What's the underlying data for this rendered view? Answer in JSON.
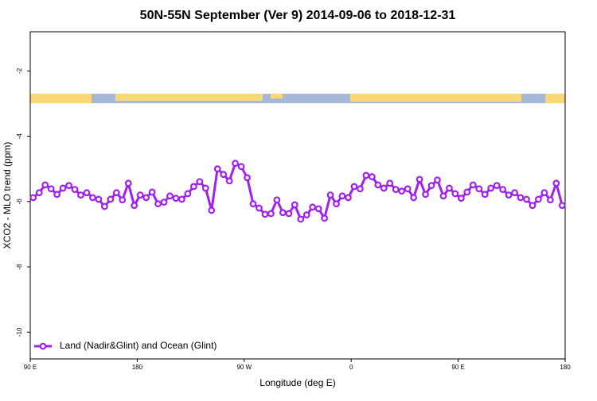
{
  "chart_data": {
    "type": "line",
    "title": "50N-55N September (Ver 9)   2014-09-06 to 2018-12-31",
    "xlabel": "Longitude (deg E)",
    "ylabel": "XCO2 - MLO trend (ppm)",
    "legend": "lower left",
    "xlim": [
      90,
      540
    ],
    "ylim": [
      -10.82,
      -0.8
    ],
    "xticks": [
      {
        "value": 90,
        "label": "90 E"
      },
      180,
      {
        "value": 270,
        "label": "90 W"
      },
      0,
      {
        "value": 450,
        "label": "90 E"
      },
      {
        "value": 540,
        "label": "180"
      }
    ],
    "yticks": [
      -2,
      -4,
      -6,
      -8,
      -10
    ],
    "x": [
      92.5,
      97.5,
      102.5,
      107.5,
      112.5,
      117.5,
      122.5,
      127.5,
      132.5,
      137.5,
      142.5,
      147.5,
      152.5,
      157.5,
      162.5,
      167.5,
      172.5,
      177.5,
      182.5,
      187.5,
      192.5,
      197.5,
      202.5,
      207.5,
      212.5,
      217.5,
      222.5,
      227.5,
      232.5,
      237.5,
      242.5,
      247.5,
      252.5,
      257.5,
      262.5,
      267.5,
      272.5,
      277.5,
      282.5,
      287.5,
      292.5,
      297.5,
      302.5,
      307.5,
      312.5,
      317.5,
      322.5,
      327.5,
      332.5,
      337.5,
      342.5,
      347.5,
      352.5,
      357.5,
      362.5,
      367.5,
      372.5,
      377.5,
      382.5,
      387.5,
      392.5,
      397.5,
      402.5,
      407.5,
      412.5,
      417.5,
      422.5,
      427.5,
      432.5,
      437.5,
      442.5,
      447.5,
      452.5,
      457.5,
      462.5,
      467.5,
      472.5,
      477.5,
      482.5,
      487.5,
      492.5,
      497.5,
      502.5,
      507.5,
      512.5,
      517.5,
      522.5,
      527.5,
      532.5,
      537.5
    ],
    "series": [
      {
        "name": "Land (Nadir&Glint) and Ocean (Glint)",
        "color": "#a020f0",
        "values": [
          -5.88,
          -5.73,
          -5.49,
          -5.61,
          -5.78,
          -5.59,
          -5.51,
          -5.63,
          -5.8,
          -5.73,
          -5.88,
          -5.93,
          -6.15,
          -5.93,
          -5.73,
          -5.95,
          -5.44,
          -6.12,
          -5.8,
          -5.88,
          -5.71,
          -6.07,
          -6.02,
          -5.83,
          -5.9,
          -5.93,
          -5.76,
          -5.54,
          -5.39,
          -5.59,
          -6.27,
          -5.0,
          -5.17,
          -5.37,
          -4.83,
          -4.93,
          -5.27,
          -6.07,
          -6.2,
          -6.39,
          -6.37,
          -5.95,
          -6.34,
          -6.37,
          -6.1,
          -6.54,
          -6.41,
          -6.17,
          -6.22,
          -6.51,
          -5.8,
          -6.07,
          -5.83,
          -5.88,
          -5.54,
          -5.61,
          -5.2,
          -5.24,
          -5.49,
          -5.59,
          -5.44,
          -5.63,
          -5.68,
          -5.61,
          -5.88,
          -5.32,
          -5.78,
          -5.51,
          -5.34,
          -5.83,
          -5.59,
          -5.76,
          -5.9,
          -5.71,
          -5.49,
          -5.61,
          -5.78,
          -5.59,
          -5.51,
          -5.63,
          -5.8,
          -5.73,
          -5.88,
          -5.93,
          -6.12,
          -5.93,
          -5.73,
          -5.95,
          -5.44,
          -6.12
        ]
      }
    ]
  }
}
